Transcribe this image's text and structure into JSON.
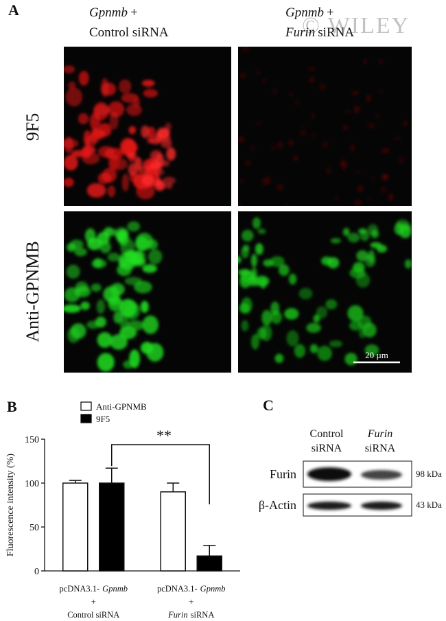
{
  "panel_a": {
    "label": "A",
    "watermark": "© WILEY",
    "columns": [
      {
        "line1": [
          {
            "text": "Gpnmb",
            "italic": true
          },
          {
            "text": "+"
          }
        ],
        "line2": [
          {
            "text": "Control siRNA"
          }
        ]
      },
      {
        "line1": [
          {
            "text": "Gpnmb",
            "italic": true
          },
          {
            "text": "+"
          }
        ],
        "line2": [
          {
            "text": "Furin",
            "italic": true
          },
          {
            "text": "siRNA"
          }
        ]
      }
    ],
    "rows": [
      "9F5",
      "Anti-GPNMB"
    ],
    "scale_bar": "20 µm"
  },
  "chart_data": {
    "type": "bar",
    "label": "B",
    "ylabel": "Fluorescence intensity (%)",
    "categories": [
      [
        [
          {
            "text": "pcDNA3.1-"
          },
          {
            "text": "Gpnmb",
            "italic": true
          }
        ],
        [
          {
            "text": "+"
          }
        ],
        [
          {
            "text": "Control siRNA"
          }
        ]
      ],
      [
        [
          {
            "text": "pcDNA3.1-"
          },
          {
            "text": "Gpnmb",
            "italic": true
          }
        ],
        [
          {
            "text": "+"
          }
        ],
        [
          {
            "text": "Furin",
            "italic": true
          },
          {
            "text": "siRNA"
          }
        ]
      ]
    ],
    "series": [
      {
        "name": "Anti-GPNMB",
        "color": "#ffffff",
        "values": [
          100,
          90
        ],
        "errors": [
          3,
          10
        ]
      },
      {
        "name": "9F5",
        "color": "#000000",
        "values": [
          100,
          17
        ],
        "errors": [
          17,
          12
        ]
      }
    ],
    "ylim": [
      0,
      150
    ],
    "yticks": [
      0,
      50,
      100,
      150
    ],
    "annotation": "**"
  },
  "panel_c": {
    "label": "C",
    "columns": [
      {
        "line1": [
          {
            "text": "Control"
          }
        ],
        "line2": [
          {
            "text": "siRNA"
          }
        ]
      },
      {
        "line1": [
          {
            "text": "Furin",
            "italic": true
          }
        ],
        "line2": [
          {
            "text": "siRNA"
          }
        ]
      }
    ],
    "rows": [
      {
        "name": "Furin",
        "size": "98 kDa"
      },
      {
        "name": "β-Actin",
        "size": "43 kDa"
      }
    ]
  }
}
